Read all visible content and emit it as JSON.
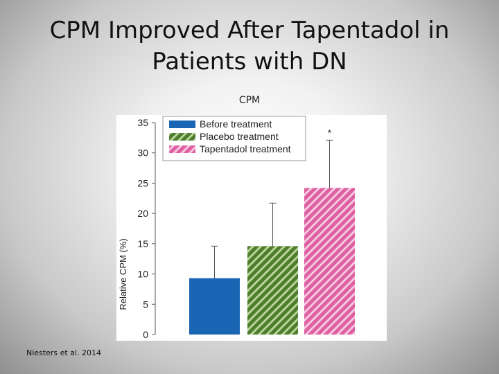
{
  "slide": {
    "title_line1": "CPM Improved After Tapentadol in",
    "title_line2": "Patients with DN",
    "subtitle": "CPM",
    "citation": "Niesters et al. 2014"
  },
  "colors": {
    "before": "#1a66b4",
    "placebo_base": "#4e7d2e",
    "placebo_stripe": "#b8d59a",
    "tapentadol_base": "#de5fa2",
    "tapentadol_stripe": "#f7c9e0",
    "error_bar": "#555555"
  },
  "chart_data": {
    "type": "bar",
    "categories": [
      "Before treatment",
      "Placebo treatment",
      "Tapentadol treatment"
    ],
    "series": [
      {
        "name": "Relative CPM (%)",
        "values": [
          9.3,
          14.6,
          24.2
        ],
        "error_upper": [
          14.6,
          21.7,
          32.1
        ]
      }
    ],
    "legend": [
      "Before treatment",
      "Placebo treatment",
      "Tapentadol treatment"
    ],
    "legend_position": "top-right",
    "annotations": [
      {
        "category": "Tapentadol treatment",
        "text": "*"
      }
    ],
    "ylabel": "Relative CPM (%)",
    "xlabel": "",
    "ylim": [
      0,
      35
    ],
    "yticks": [
      0,
      5,
      10,
      15,
      20,
      25,
      30,
      35
    ],
    "grid": false
  }
}
